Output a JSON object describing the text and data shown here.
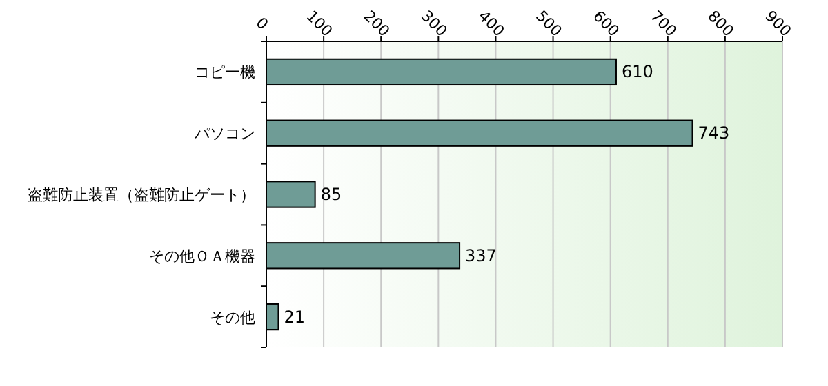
{
  "chart_data": {
    "type": "bar",
    "orientation": "horizontal",
    "categories": [
      "コピー機",
      "パソコン",
      "盗難防止装置（盗難防止ゲート）",
      "その他ＯＡ機器",
      "その他"
    ],
    "values": [
      610,
      743,
      85,
      337,
      21
    ],
    "color": "#6f9c96",
    "xlim": [
      0,
      900
    ],
    "xticks": [
      0,
      100,
      200,
      300,
      400,
      500,
      600,
      700,
      800,
      900
    ],
    "grid": "x",
    "data_labels": true
  }
}
